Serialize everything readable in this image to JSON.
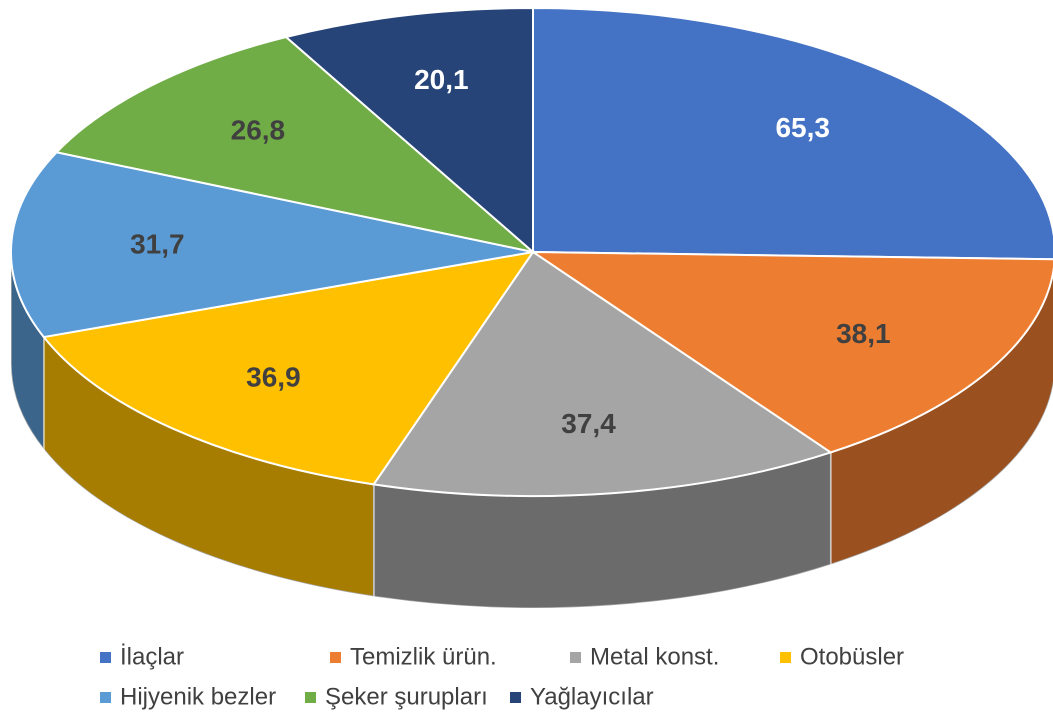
{
  "chart_data": {
    "type": "pie3d",
    "categories": [
      "İlaçlar",
      "Temizlik ürün.",
      "Metal konst.",
      "Otobüsler",
      "Hijyenik bezler",
      "Şeker şurupları",
      "Yağlayıcılar"
    ],
    "values": [
      65.3,
      38.1,
      37.4,
      36.9,
      31.7,
      26.8,
      20.1
    ],
    "value_labels": [
      "65,3",
      "38,1",
      "37,4",
      "36,9",
      "31,7",
      "26,8",
      "20,1"
    ],
    "colors": [
      "#4472c4",
      "#ed7d31",
      "#a5a5a5",
      "#ffc000",
      "#5b9bd5",
      "#70ad47",
      "#264478"
    ],
    "legend": "bottom"
  }
}
